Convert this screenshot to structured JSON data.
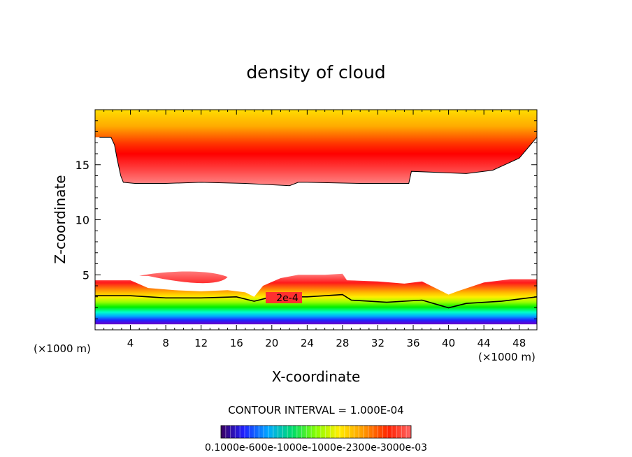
{
  "chart_data": {
    "type": "heatmap",
    "title": "density of cloud",
    "xlabel": "X-coordinate",
    "ylabel": "Z-coordinate",
    "x_units": "(×1000 m)",
    "xlim": [
      0,
      50
    ],
    "ylim": [
      0,
      20
    ],
    "x_ticks": [
      4,
      8,
      12,
      16,
      20,
      24,
      28,
      32,
      36,
      40,
      44,
      48
    ],
    "y_ticks": [
      5,
      10,
      15
    ],
    "contour_label": "2e-4",
    "contour_interval_text": "CONTOUR INTERVAL = 1.000E-04",
    "colorbar_labels_text": "0.1000e-600e-1000e-1000e-2300e-3000e-03",
    "colorbar_range": [
      0.0001,
      0.0003
    ],
    "upper_cloud_layer": {
      "top_z": 20,
      "base_profile": [
        [
          0.5,
          17.5
        ],
        [
          1.8,
          17.5
        ],
        [
          2.2,
          16.8
        ],
        [
          2.5,
          15.5
        ],
        [
          2.9,
          14.0
        ],
        [
          3.2,
          13.4
        ],
        [
          4.5,
          13.3
        ],
        [
          8,
          13.3
        ],
        [
          12,
          13.4
        ],
        [
          17,
          13.3
        ],
        [
          22,
          13.1
        ],
        [
          23,
          13.4
        ],
        [
          24,
          13.4
        ],
        [
          30,
          13.3
        ],
        [
          35.5,
          13.3
        ],
        [
          35.8,
          14.4
        ],
        [
          42,
          14.2
        ],
        [
          45,
          14.5
        ],
        [
          48,
          15.6
        ],
        [
          50,
          17.5
        ]
      ],
      "max_density_z": 16.5
    },
    "lower_cloud_layer": {
      "base_z": 0.5,
      "top_profile": [
        [
          0,
          4.5
        ],
        [
          4,
          4.5
        ],
        [
          6,
          3.8
        ],
        [
          9,
          3.6
        ],
        [
          12,
          3.5
        ],
        [
          15,
          3.6
        ],
        [
          17,
          3.4
        ],
        [
          18,
          3.0
        ],
        [
          19,
          4.0
        ],
        [
          21,
          4.7
        ],
        [
          23,
          5.0
        ],
        [
          26,
          5.0
        ],
        [
          28,
          5.1
        ],
        [
          28.5,
          4.5
        ],
        [
          32,
          4.4
        ],
        [
          35,
          4.2
        ],
        [
          37,
          4.4
        ],
        [
          38,
          4.0
        ],
        [
          40,
          3.2
        ],
        [
          41,
          3.5
        ],
        [
          44,
          4.3
        ],
        [
          47,
          4.6
        ],
        [
          50,
          4.6
        ]
      ],
      "detached_lobe_x_range": [
        5,
        15
      ],
      "detached_lobe_z_range": [
        3.9,
        5.4
      ],
      "contour_2e4_profile": [
        [
          0,
          3.1
        ],
        [
          4,
          3.1
        ],
        [
          8,
          2.9
        ],
        [
          12,
          2.9
        ],
        [
          16,
          3.0
        ],
        [
          18,
          2.6
        ],
        [
          20,
          3.0
        ],
        [
          24,
          3.0
        ],
        [
          28,
          3.2
        ],
        [
          29,
          2.7
        ],
        [
          33,
          2.5
        ],
        [
          37,
          2.7
        ],
        [
          40,
          2.0
        ],
        [
          42,
          2.4
        ],
        [
          46,
          2.6
        ],
        [
          50,
          3.0
        ]
      ]
    }
  }
}
